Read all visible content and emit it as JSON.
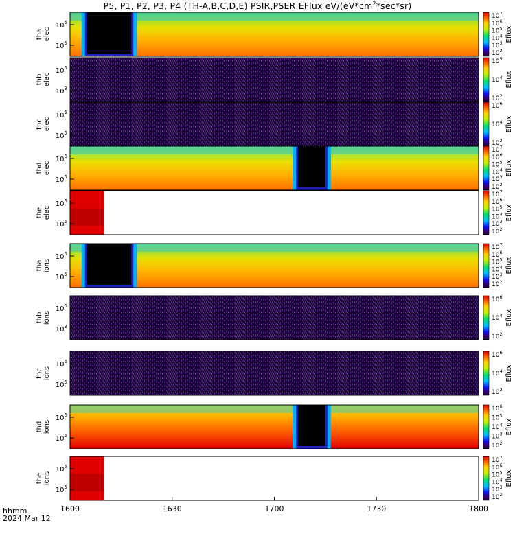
{
  "title_prefix": "P5, P1, P2, P3, P4 (TH-A,B,C,D,E) PSIR,PSER EFlux eV/(eV*cm",
  "title_sup": "2",
  "title_suffix": "*sec*sr)",
  "footer": {
    "line1": "hhmm",
    "line2": "2024 Mar 12"
  },
  "chart_data": {
    "type": "heatmap",
    "x_ticks": [
      "1600",
      "1630",
      "1700",
      "1730",
      "1800"
    ],
    "x_range": [
      "1600",
      "1800"
    ],
    "colorbar_label": "Eflux",
    "panels": [
      {
        "id": "tha_elec",
        "ylabel": [
          "tha",
          "elec"
        ],
        "yticks": [
          "10^6",
          "10^5"
        ],
        "cb_ticks": [
          "10^7",
          "10^6",
          "10^5",
          "10^4",
          "10^3",
          "10^2"
        ],
        "style": "full",
        "gaps": [
          [
            1605,
            1618
          ]
        ]
      },
      {
        "id": "thb_elec",
        "ylabel": [
          "thb",
          "elec"
        ],
        "yticks": [
          "10^5",
          "10^3"
        ],
        "cb_ticks": [
          "10^5",
          "10^4",
          "10^2"
        ],
        "style": "noise"
      },
      {
        "id": "thc_elec",
        "ylabel": [
          "thc",
          "elec"
        ],
        "yticks": [
          "10^5",
          "10^5"
        ],
        "cb_ticks": [
          "10^6",
          "10^4",
          "10^2"
        ],
        "style": "noise"
      },
      {
        "id": "thd_elec",
        "ylabel": [
          "thd",
          "elec"
        ],
        "yticks": [
          "10^6",
          "10^5"
        ],
        "cb_ticks": [
          "10^7",
          "10^6",
          "10^5",
          "10^4",
          "10^3",
          "10^2"
        ],
        "style": "full",
        "gaps": [
          [
            1707,
            1715
          ]
        ]
      },
      {
        "id": "the_elec",
        "ylabel": [
          "the",
          "elec"
        ],
        "yticks": [
          "10^6",
          "10^5"
        ],
        "cb_ticks": [
          "10^7",
          "10^6",
          "10^5",
          "10^4",
          "10^3",
          "10^2"
        ],
        "style": "partial",
        "fill_to": "1610"
      },
      {
        "id": "tha_ions",
        "ylabel": [
          "tha",
          "ions"
        ],
        "yticks": [
          "10^6",
          "10^5"
        ],
        "cb_ticks": [
          "10^7",
          "10^6",
          "10^5",
          "10^4",
          "10^3",
          "10^2"
        ],
        "style": "full",
        "gaps": [
          [
            1605,
            1618
          ]
        ]
      },
      {
        "id": "thb_ions",
        "ylabel": [
          "thb",
          "ions"
        ],
        "yticks": [
          "10^6",
          "10^3"
        ],
        "cb_ticks": [
          "10^6",
          "10^4",
          "10^2"
        ],
        "style": "noise"
      },
      {
        "id": "thc_ions",
        "ylabel": [
          "thc",
          "ions"
        ],
        "yticks": [
          "10^6",
          "10^5"
        ],
        "cb_ticks": [
          "10^6",
          "10^4",
          "10^2"
        ],
        "style": "noise"
      },
      {
        "id": "thd_ions",
        "ylabel": [
          "thd",
          "ions"
        ],
        "yticks": [
          "10^6",
          "10^5"
        ],
        "cb_ticks": [
          "10^6",
          "10^5",
          "10^4",
          "10^3",
          "10^2"
        ],
        "style": "full_hot",
        "gaps": [
          [
            1707,
            1715
          ]
        ]
      },
      {
        "id": "the_ions",
        "ylabel": [
          "the",
          "ions"
        ],
        "yticks": [
          "10^6",
          "10^5"
        ],
        "cb_ticks": [
          "10^7",
          "10^6",
          "10^5",
          "10^4",
          "10^3",
          "10^2"
        ],
        "style": "partial",
        "fill_to": "1610"
      }
    ]
  }
}
